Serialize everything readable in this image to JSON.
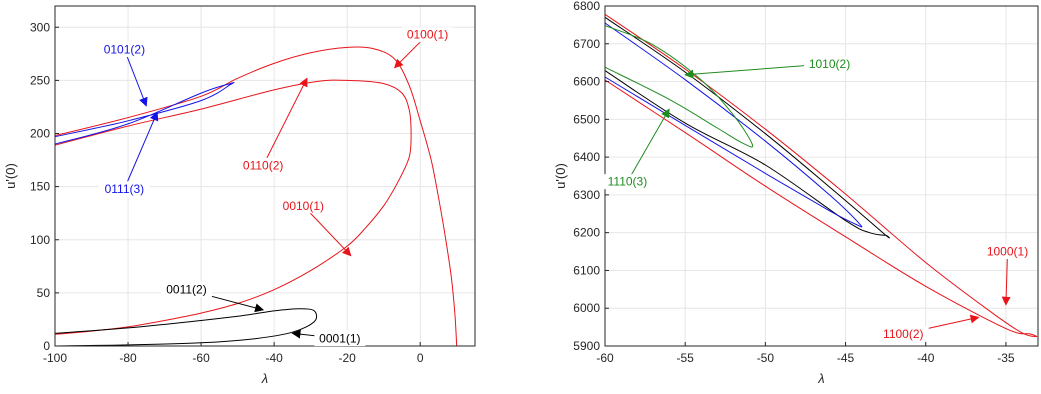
{
  "colors": {
    "red": "#e8141a",
    "blue": "#1414e6",
    "black": "#000000",
    "green": "#1f8c1f",
    "grid": "#e6e6e6",
    "axis": "#262626"
  },
  "chart_data": [
    {
      "type": "line",
      "xlabel": "λ",
      "ylabel": "u'(0)",
      "xlim": [
        -100,
        15
      ],
      "ylim": [
        0,
        320
      ],
      "xticks": [
        -100,
        -80,
        -60,
        -40,
        -20,
        0
      ],
      "yticks": [
        0,
        50,
        100,
        150,
        200,
        250,
        300
      ],
      "grid": true,
      "series": [
        {
          "color": "red",
          "points": [
            [
              -100,
              11
            ],
            [
              -90,
              14
            ],
            [
              -80,
              18
            ],
            [
              -70,
              24
            ],
            [
              -60,
              31
            ],
            [
              -50,
              40
            ],
            [
              -40,
              53
            ],
            [
              -30,
              71
            ],
            [
              -20,
              94
            ],
            [
              -15,
              111
            ],
            [
              -10,
              132
            ],
            [
              -6,
              155
            ],
            [
              -3,
              178
            ],
            [
              -2.5,
              200
            ],
            [
              -3,
              222
            ],
            [
              -5,
              238
            ],
            [
              -10,
              247
            ],
            [
              -20,
              250
            ],
            [
              -28,
              249
            ],
            [
              -40,
              241
            ],
            [
              -60,
              223
            ],
            [
              -80,
              207
            ],
            [
              -100,
              189
            ]
          ]
        },
        {
          "color": "red",
          "points": [
            [
              -100,
              198
            ],
            [
              -80,
              215
            ],
            [
              -60,
              235
            ],
            [
              -50,
              252
            ],
            [
              -40,
              266
            ],
            [
              -30,
              276
            ],
            [
              -20,
              281
            ],
            [
              -13,
              280
            ],
            [
              -7,
              270
            ],
            [
              -3,
              245
            ],
            [
              0,
              212
            ],
            [
              3,
              175
            ],
            [
              5,
              140
            ],
            [
              7,
              100
            ],
            [
              8.5,
              65
            ],
            [
              9.5,
              30
            ],
            [
              10,
              0
            ]
          ]
        },
        {
          "color": "blue",
          "points": [
            [
              -100,
              197
            ],
            [
              -80,
              212
            ],
            [
              -60,
              231
            ],
            [
              -52,
              246
            ],
            [
              -52,
              247
            ],
            [
              -60,
              238
            ],
            [
              -80,
              209
            ],
            [
              -100,
              190
            ]
          ]
        },
        {
          "color": "black",
          "points": [
            [
              -100,
              0
            ],
            [
              -80,
              1
            ],
            [
              -60,
              3
            ],
            [
              -45,
              7
            ],
            [
              -35,
              13
            ],
            [
              -29,
              23
            ],
            [
              -29,
              33
            ],
            [
              -33,
              35
            ],
            [
              -40,
              33
            ],
            [
              -50,
              28
            ],
            [
              -60,
              24
            ],
            [
              -80,
              17
            ],
            [
              -100,
              12
            ]
          ]
        }
      ],
      "annotations": [
        {
          "text": "0100(1)",
          "color": "red",
          "arrow_to": [
            -7,
            262
          ],
          "text_at": [
            2,
            293
          ]
        },
        {
          "text": "0101(2)",
          "color": "blue",
          "arrow_to": [
            -75,
            226
          ],
          "text_at": [
            -81,
            279
          ]
        },
        {
          "text": "0110(2)",
          "color": "red",
          "arrow_to": [
            -31,
            252
          ],
          "text_at": [
            -43,
            170
          ]
        },
        {
          "text": "0111(3)",
          "color": "blue",
          "arrow_to": [
            -72,
            220
          ],
          "text_at": [
            -81,
            148
          ]
        },
        {
          "text": "0010(1)",
          "color": "red",
          "arrow_to": [
            -19,
            85
          ],
          "text_at": [
            -32,
            132
          ]
        },
        {
          "text": "0011(2)",
          "color": "black",
          "arrow_to": [
            -43,
            34
          ],
          "text_at": [
            -64,
            53
          ]
        },
        {
          "text": "0001(1)",
          "color": "black",
          "arrow_to": [
            -35,
            12
          ],
          "text_at": [
            -22,
            7
          ]
        }
      ]
    },
    {
      "type": "line",
      "xlabel": "λ",
      "ylabel": "u'(0)",
      "xlim": [
        -60,
        -33
      ],
      "ylim": [
        5900,
        6800
      ],
      "xticks": [
        -60,
        -55,
        -50,
        -45,
        -40,
        -35
      ],
      "yticks": [
        5900,
        6000,
        6100,
        6200,
        6300,
        6400,
        6500,
        6600,
        6700,
        6800
      ],
      "grid": true,
      "series": [
        {
          "color": "red",
          "points": [
            [
              -60,
              6778
            ],
            [
              -55,
              6633
            ],
            [
              -50,
              6474
            ],
            [
              -45,
              6302
            ],
            [
              -40,
              6121
            ],
            [
              -36,
              5992
            ],
            [
              -34,
              5935
            ],
            [
              -33.1,
              5925
            ],
            [
              -33.5,
              5932
            ],
            [
              -35,
              5946
            ],
            [
              -40,
              6058
            ],
            [
              -45,
              6189
            ],
            [
              -50,
              6323
            ],
            [
              -55,
              6465
            ],
            [
              -60,
              6604
            ]
          ]
        },
        {
          "color": "black",
          "points": [
            [
              -60,
              6770
            ],
            [
              -55,
              6625
            ],
            [
              -50,
              6462
            ],
            [
              -46,
              6321
            ],
            [
              -42.6,
              6197
            ],
            [
              -42.5,
              6193
            ],
            [
              -43.5,
              6200
            ],
            [
              -45,
              6232
            ],
            [
              -50,
              6379
            ],
            [
              -55,
              6490
            ],
            [
              -60,
              6629
            ]
          ]
        },
        {
          "color": "blue",
          "points": [
            [
              -60,
              6755
            ],
            [
              -55,
              6605
            ],
            [
              -50,
              6442
            ],
            [
              -46,
              6300
            ],
            [
              -44.1,
              6222
            ],
            [
              -44.4,
              6223
            ],
            [
              -46,
              6258
            ],
            [
              -50,
              6357
            ],
            [
              -55,
              6484
            ],
            [
              -60,
              6612
            ]
          ]
        },
        {
          "color": "green",
          "points": [
            [
              -60,
              6748
            ],
            [
              -57,
              6697
            ],
            [
              -54,
              6604
            ],
            [
              -52,
              6512
            ],
            [
              -50.8,
              6432
            ],
            [
              -51.5,
              6439
            ],
            [
              -53,
              6477
            ],
            [
              -56,
              6553
            ],
            [
              -60,
              6638
            ]
          ]
        }
      ],
      "annotations": [
        {
          "text": "1010(2)",
          "color": "green",
          "arrow_to": [
            -55,
            6618
          ],
          "text_at": [
            -46,
            6647
          ]
        },
        {
          "text": "1110(3)",
          "color": "green",
          "arrow_to": [
            -56,
            6527
          ],
          "text_at": [
            -58.6,
            6335
          ]
        },
        {
          "text": "1000(1)",
          "color": "red",
          "arrow_to": [
            -35,
            6009
          ],
          "text_at": [
            -34.9,
            6150
          ]
        },
        {
          "text": "1100(2)",
          "color": "red",
          "arrow_to": [
            -36.7,
            5976
          ],
          "text_at": [
            -41.4,
            5932
          ]
        }
      ]
    }
  ]
}
